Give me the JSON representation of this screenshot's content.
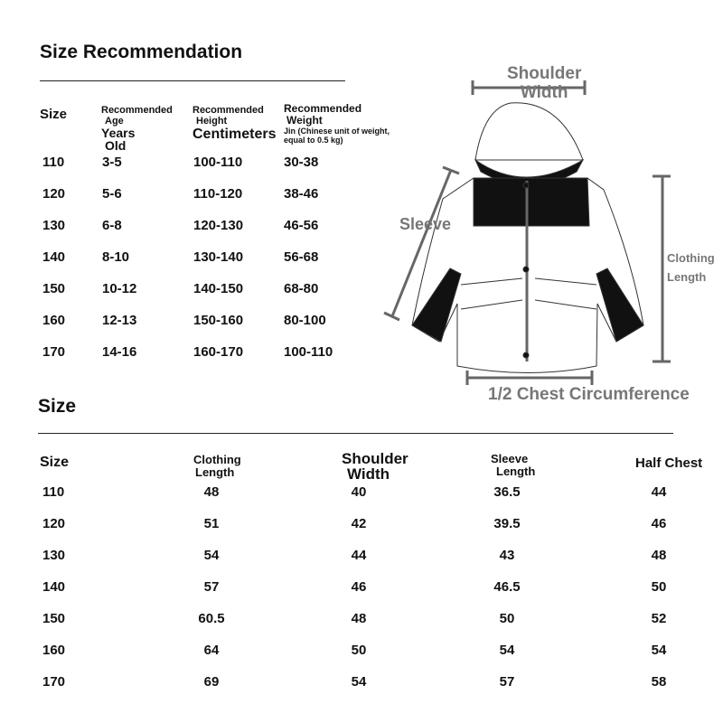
{
  "section1": {
    "title": "Size Recommendation",
    "headers": {
      "size": "Size",
      "age_top": "Recommended",
      "age_sub": "Age",
      "age_unit1": "Years",
      "age_unit2": "Old",
      "height_top": "Recommended",
      "height_sub": "Height",
      "height_unit": "Centimeters",
      "weight_top": "Recommended",
      "weight_sub": "Weight",
      "weight_unit1": "Jin (Chinese unit of weight,",
      "weight_unit2": "equal to 0.5 kg)"
    },
    "rows": [
      [
        "110",
        "3-5",
        "100-110",
        "30-38"
      ],
      [
        "120",
        "5-6",
        "110-120",
        "38-46"
      ],
      [
        "130",
        "6-8",
        "120-130",
        "46-56"
      ],
      [
        "140",
        "8-10",
        "130-140",
        "56-68"
      ],
      [
        "150",
        "10-12",
        "140-150",
        "68-80"
      ],
      [
        "160",
        "12-13",
        "150-160",
        "80-100"
      ],
      [
        "170",
        "14-16",
        "160-170",
        "100-110"
      ]
    ]
  },
  "diagram": {
    "shoulder_1": "Shoulder",
    "shoulder_2": "Width",
    "sleeve": "Sleeve",
    "length_1": "Clothing",
    "length_2": "Length",
    "chest": "1/2 Chest Circumference"
  },
  "section2": {
    "title": "Size",
    "headers": {
      "size": "Size",
      "length_1": "Clothing",
      "length_2": "Length",
      "shoulder_1": "Shoulder",
      "shoulder_2": "Width",
      "sleeve_1": "Sleeve",
      "sleeve_2": "Length",
      "chest": "Half Chest"
    },
    "rows": [
      [
        "110",
        "48",
        "40",
        "36.5",
        "44"
      ],
      [
        "120",
        "51",
        "42",
        "39.5",
        "46"
      ],
      [
        "130",
        "54",
        "44",
        "43",
        "48"
      ],
      [
        "140",
        "57",
        "46",
        "46.5",
        "50"
      ],
      [
        "150",
        "60.5",
        "48",
        "50",
        "52"
      ],
      [
        "160",
        "64",
        "50",
        "54",
        "54"
      ],
      [
        "170",
        "69",
        "54",
        "57",
        "58"
      ]
    ]
  }
}
